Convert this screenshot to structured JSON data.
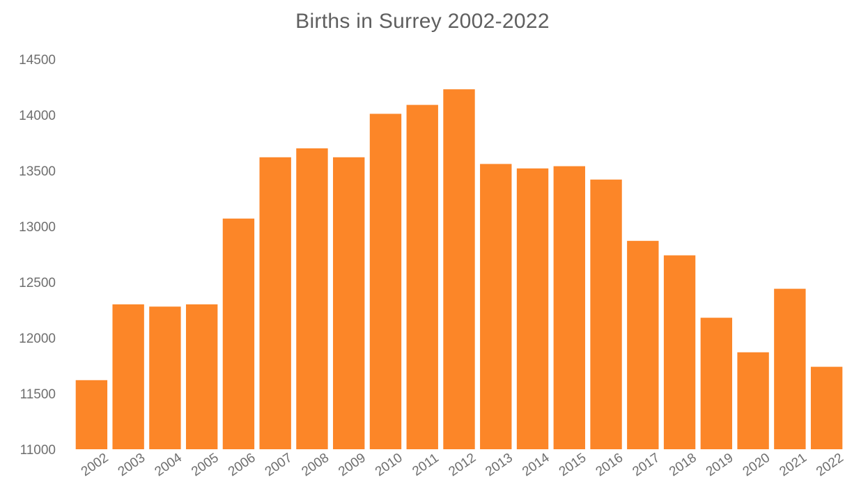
{
  "chart_data": {
    "type": "bar",
    "title": "Births in Surrey 2002-2022",
    "xlabel": "",
    "ylabel": "",
    "categories": [
      "2002",
      "2003",
      "2004",
      "2005",
      "2006",
      "2007",
      "2008",
      "2009",
      "2010",
      "2011",
      "2012",
      "2013",
      "2014",
      "2015",
      "2016",
      "2017",
      "2018",
      "2019",
      "2020",
      "2021",
      "2022"
    ],
    "values": [
      11620,
      12300,
      12280,
      12300,
      13070,
      13620,
      13700,
      13620,
      14010,
      14090,
      14230,
      13560,
      13520,
      13540,
      13420,
      12870,
      12740,
      12180,
      11870,
      12440,
      11740
    ],
    "ylim": [
      11000,
      14500
    ],
    "yticks": [
      "11000",
      "11500",
      "12000",
      "12500",
      "13000",
      "13500",
      "14000",
      "14500"
    ],
    "bar_color": "#fc8628",
    "grid": false,
    "legend": "none"
  }
}
